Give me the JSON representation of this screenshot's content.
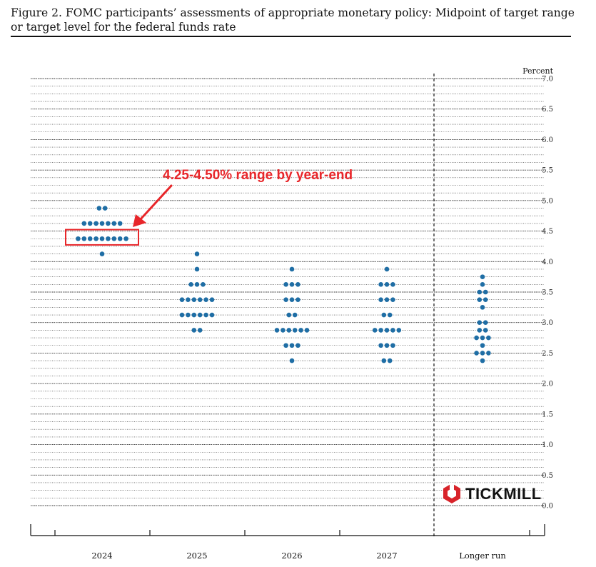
{
  "title": "Figure 2.  FOMC participants’ assessments of appropriate monetary policy:  Midpoint of target range or target level for the federal funds rate",
  "colors": {
    "dot": "#1f6ea5",
    "annotation": "#e8262a",
    "grid": "#333333",
    "logo_red": "#d8232a"
  },
  "annotation": {
    "text": "4.25-4.50% range by year-end",
    "highlight_range": [
      4.25,
      4.5
    ],
    "highlight_category": "2024"
  },
  "watermark": {
    "text": "TICKMILL",
    "icon": "tickmill-hexagon-icon"
  },
  "chart_data": {
    "type": "scatter",
    "subtype": "dot-plot",
    "title": "Figure 2.  FOMC participants’ assessments of appropriate monetary policy:  Midpoint of target range or target level for the federal funds rate",
    "ylabel": "Percent",
    "ylim": [
      0,
      7
    ],
    "y_ticks": [
      "0.0",
      "0.5",
      "1.0",
      "1.5",
      "2.0",
      "2.5",
      "3.0",
      "3.5",
      "4.0",
      "4.5",
      "5.0",
      "5.5",
      "6.0",
      "6.5",
      "7.0"
    ],
    "grid": true,
    "gridline_step": 0.125,
    "categories": [
      "2024",
      "2025",
      "2026",
      "2027",
      "Longer run"
    ],
    "series": [
      {
        "category": "2024",
        "points": [
          {
            "y": 4.875,
            "count": 2
          },
          {
            "y": 4.625,
            "count": 7
          },
          {
            "y": 4.375,
            "count": 9
          },
          {
            "y": 4.125,
            "count": 1
          }
        ]
      },
      {
        "category": "2025",
        "points": [
          {
            "y": 4.125,
            "count": 1
          },
          {
            "y": 3.875,
            "count": 1
          },
          {
            "y": 3.625,
            "count": 3
          },
          {
            "y": 3.375,
            "count": 6
          },
          {
            "y": 3.125,
            "count": 6
          },
          {
            "y": 2.875,
            "count": 2
          }
        ]
      },
      {
        "category": "2026",
        "points": [
          {
            "y": 3.875,
            "count": 1
          },
          {
            "y": 3.625,
            "count": 3
          },
          {
            "y": 3.375,
            "count": 3
          },
          {
            "y": 3.125,
            "count": 2
          },
          {
            "y": 2.875,
            "count": 6
          },
          {
            "y": 2.625,
            "count": 3
          },
          {
            "y": 2.375,
            "count": 1
          }
        ]
      },
      {
        "category": "2027",
        "points": [
          {
            "y": 3.875,
            "count": 1
          },
          {
            "y": 3.625,
            "count": 3
          },
          {
            "y": 3.375,
            "count": 3
          },
          {
            "y": 3.125,
            "count": 2
          },
          {
            "y": 2.875,
            "count": 5
          },
          {
            "y": 2.625,
            "count": 3
          },
          {
            "y": 2.375,
            "count": 2
          }
        ]
      },
      {
        "category": "Longer run",
        "points": [
          {
            "y": 3.75,
            "count": 1
          },
          {
            "y": 3.625,
            "count": 1
          },
          {
            "y": 3.5,
            "count": 2
          },
          {
            "y": 3.375,
            "count": 2
          },
          {
            "y": 3.25,
            "count": 1
          },
          {
            "y": 3.0,
            "count": 2
          },
          {
            "y": 2.875,
            "count": 2
          },
          {
            "y": 2.75,
            "count": 3
          },
          {
            "y": 2.625,
            "count": 1
          },
          {
            "y": 2.5,
            "count": 3
          },
          {
            "y": 2.375,
            "count": 1
          }
        ]
      }
    ]
  }
}
